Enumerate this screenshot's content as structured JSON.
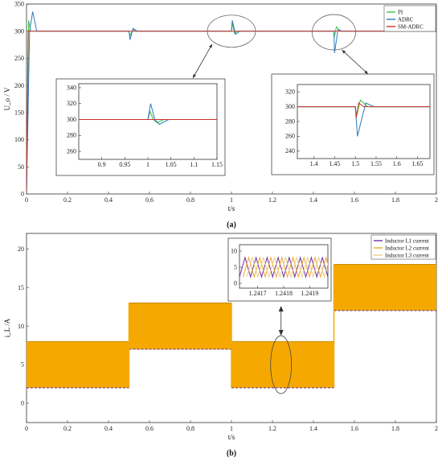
{
  "chart_data": [
    {
      "id": "a",
      "type": "line",
      "caption": "(a)",
      "xlabel": "t/s",
      "ylabel": "U_o / V",
      "xlim": [
        0,
        2
      ],
      "ylim": [
        0,
        350
      ],
      "xticks": [
        "0",
        "0.2",
        "0.4",
        "0.6",
        "0.8",
        "1",
        "1.2",
        "1.4",
        "1.6",
        "1.8",
        "2"
      ],
      "yticks": [
        "0",
        "50",
        "100",
        "150",
        "200",
        "250",
        "300",
        "350"
      ],
      "legend_position": "top-right",
      "grid": false,
      "series": [
        {
          "name": "PI",
          "color": "#3fbf3f",
          "points": [
            [
              0,
              0
            ],
            [
              0.01,
              320
            ],
            [
              0.02,
              300
            ],
            [
              0.04,
              300
            ],
            [
              0.5,
              300
            ],
            [
              0.505,
              292
            ],
            [
              0.52,
              303
            ],
            [
              0.53,
              300
            ],
            [
              1.0,
              300
            ],
            [
              1.004,
              315
            ],
            [
              1.015,
              296
            ],
            [
              1.03,
              300
            ],
            [
              1.5,
              300
            ],
            [
              1.503,
              290
            ],
            [
              1.512,
              308
            ],
            [
              1.53,
              300
            ],
            [
              2,
              300
            ]
          ]
        },
        {
          "name": "ADRC",
          "color": "#2b7bbf",
          "points": [
            [
              0,
              0
            ],
            [
              0.015,
              300
            ],
            [
              0.03,
              336
            ],
            [
              0.05,
              300
            ],
            [
              0.5,
              300
            ],
            [
              0.505,
              284
            ],
            [
              0.52,
              305
            ],
            [
              0.54,
              300
            ],
            [
              1.0,
              300
            ],
            [
              1.004,
              320
            ],
            [
              1.02,
              294
            ],
            [
              1.04,
              300
            ],
            [
              1.5,
              300
            ],
            [
              1.503,
              260
            ],
            [
              1.52,
              303
            ],
            [
              1.54,
              300
            ],
            [
              2,
              300
            ]
          ]
        },
        {
          "name": "SM-ADRC",
          "color": "#d0312d",
          "points": [
            [
              0,
              0
            ],
            [
              0.008,
              300
            ],
            [
              2,
              300
            ]
          ]
        }
      ],
      "insets": [
        {
          "xlim": [
            0.85,
            1.15
          ],
          "ylim": [
            250,
            345
          ],
          "xticks": [
            "0.9",
            "0.95",
            "1",
            "1.05",
            "1.1",
            "1.15"
          ],
          "yticks": [
            "260",
            "280",
            "300",
            "320",
            "340"
          ],
          "series": [
            {
              "name": "PI",
              "color": "#3fbf3f",
              "points": [
                [
                  0.85,
                  300
                ],
                [
                  1.0,
                  300
                ],
                [
                  1.005,
                  310
                ],
                [
                  1.012,
                  300
                ],
                [
                  1.02,
                  296
                ],
                [
                  1.035,
                  300
                ],
                [
                  1.15,
                  300
                ]
              ]
            },
            {
              "name": "ADRC",
              "color": "#2b7bbf",
              "points": [
                [
                  0.85,
                  300
                ],
                [
                  1.0,
                  300
                ],
                [
                  1.006,
                  320
                ],
                [
                  1.015,
                  300
                ],
                [
                  1.025,
                  294
                ],
                [
                  1.045,
                  300
                ],
                [
                  1.15,
                  300
                ]
              ]
            },
            {
              "name": "SM-ADRC",
              "color": "#d0312d",
              "points": [
                [
                  0.85,
                  300
                ],
                [
                  1.15,
                  300
                ]
              ]
            }
          ]
        },
        {
          "xlim": [
            1.36,
            1.68
          ],
          "ylim": [
            230,
            330
          ],
          "xticks": [
            "1.4",
            "1.45",
            "1.5",
            "1.55",
            "1.6",
            "1.65"
          ],
          "yticks": [
            "240",
            "260",
            "280",
            "300",
            "320"
          ],
          "series": [
            {
              "name": "PI",
              "color": "#3fbf3f",
              "points": [
                [
                  1.36,
                  300
                ],
                [
                  1.5,
                  300
                ],
                [
                  1.503,
                  287
                ],
                [
                  1.512,
                  309
                ],
                [
                  1.53,
                  300
                ],
                [
                  1.68,
                  300
                ]
              ]
            },
            {
              "name": "ADRC",
              "color": "#2b7bbf",
              "points": [
                [
                  1.36,
                  300
                ],
                [
                  1.5,
                  300
                ],
                [
                  1.505,
                  260
                ],
                [
                  1.525,
                  305
                ],
                [
                  1.545,
                  300
                ],
                [
                  1.68,
                  300
                ]
              ]
            },
            {
              "name": "SM-ADRC",
              "color": "#d0312d",
              "points": [
                [
                  1.36,
                  300
                ],
                [
                  1.5,
                  300
                ],
                [
                  1.502,
                  285
                ],
                [
                  1.508,
                  305
                ],
                [
                  1.52,
                  300
                ],
                [
                  1.68,
                  300
                ]
              ]
            }
          ]
        }
      ]
    },
    {
      "id": "b",
      "type": "line",
      "caption": "(b)",
      "xlabel": "t/s",
      "ylabel": "i_L /A",
      "xlim": [
        0,
        2
      ],
      "ylim": [
        -2.5,
        22
      ],
      "xticks": [
        "0",
        "0.2",
        "0.4",
        "0.6",
        "0.8",
        "1",
        "1.2",
        "1.4",
        "1.6",
        "1.8",
        "2"
      ],
      "yticks": [
        "0",
        "5",
        "10",
        "15",
        "20"
      ],
      "legend_position": "top-right",
      "grid": false,
      "bands": [
        {
          "x": [
            0,
            0.5
          ],
          "low": 2,
          "high": 8
        },
        {
          "x": [
            0.5,
            1.0
          ],
          "low": 7,
          "high": 13
        },
        {
          "x": [
            1.0,
            1.5
          ],
          "low": 2,
          "high": 8
        },
        {
          "x": [
            1.5,
            2.0
          ],
          "low": 12,
          "high": 18
        }
      ],
      "band_color": "#f5a800",
      "series": [
        {
          "name": "Inductor L1 current",
          "color": "#7030a0"
        },
        {
          "name": "Inductor L2 current",
          "color": "#f0a830"
        },
        {
          "name": "Inductor L3 current",
          "color": "#e8d08a"
        }
      ],
      "inset": {
        "xlim": [
          1.24163,
          1.24197
        ],
        "ylim": [
          -1.5,
          12
        ],
        "xticks": [
          "1.2417",
          "1.2418",
          "1.2419"
        ],
        "yticks": [
          "0",
          "5",
          "10"
        ],
        "wave_low": 2,
        "wave_high": 8,
        "cycles": 8
      }
    }
  ]
}
